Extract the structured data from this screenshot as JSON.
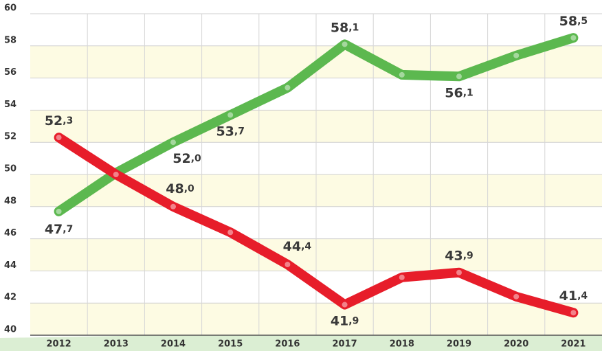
{
  "chart_data": {
    "type": "line",
    "categories": [
      "2012",
      "2013",
      "2014",
      "2015",
      "2016",
      "2017",
      "2018",
      "2019",
      "2020",
      "2021"
    ],
    "series": [
      {
        "color": "#5cb84f",
        "values": [
          47.7,
          50.1,
          52.0,
          53.7,
          55.4,
          58.1,
          56.2,
          56.1,
          57.4,
          58.5
        ],
        "value_labels": [
          "47,7",
          null,
          "52,0",
          "53,7",
          null,
          "58,1",
          null,
          "56,1",
          null,
          "58,5"
        ]
      },
      {
        "color": "#e71d2a",
        "values": [
          52.3,
          50.0,
          48.0,
          46.4,
          44.4,
          41.9,
          43.6,
          43.9,
          42.4,
          41.4
        ],
        "value_labels": [
          "52,3",
          null,
          "48,0",
          null,
          "44,4",
          "41,9",
          null,
          "43,9",
          null,
          "41,4"
        ]
      }
    ],
    "ylim": [
      40,
      60
    ],
    "yticks": [
      40,
      42,
      44,
      46,
      48,
      50,
      52,
      54,
      56,
      58,
      60
    ],
    "grid": true,
    "band_color": "#fdfbe3"
  }
}
